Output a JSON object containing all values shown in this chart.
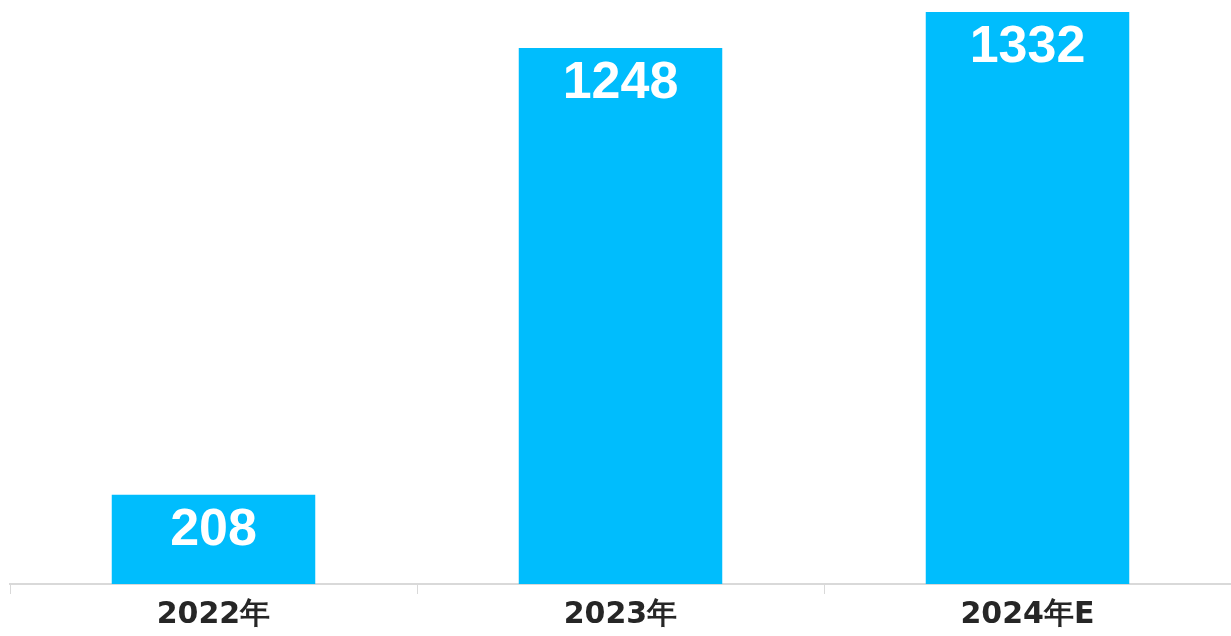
{
  "chart_data": {
    "type": "bar",
    "categories": [
      "2022年",
      "2023年",
      "2024年E"
    ],
    "values": [
      208,
      1248,
      1332
    ],
    "color": "#00bdfd",
    "data_labels": true,
    "grid": false,
    "legend": false,
    "tick_labels": "x"
  }
}
